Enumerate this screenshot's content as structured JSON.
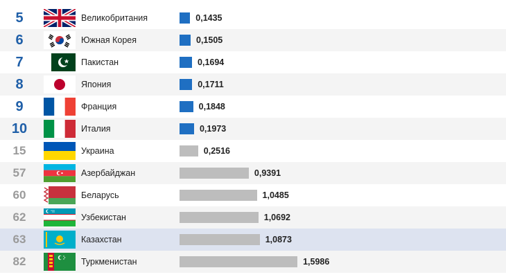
{
  "chart_data": {
    "type": "bar",
    "orientation": "horizontal",
    "rows": [
      {
        "rank": "5",
        "country": "Великобритания",
        "value": 0.1435,
        "label": "0,1435",
        "flag": "uk-flag",
        "top": true
      },
      {
        "rank": "6",
        "country": "Южная Корея",
        "value": 0.1505,
        "label": "0,1505",
        "flag": "south-korea-flag",
        "top": true
      },
      {
        "rank": "7",
        "country": "Пакистан",
        "value": 0.1694,
        "label": "0,1694",
        "flag": "pakistan-flag",
        "top": true
      },
      {
        "rank": "8",
        "country": "Япония",
        "value": 0.1711,
        "label": "0,1711",
        "flag": "japan-flag",
        "top": true
      },
      {
        "rank": "9",
        "country": "Франция",
        "value": 0.1848,
        "label": "0,1848",
        "flag": "france-flag",
        "top": true
      },
      {
        "rank": "10",
        "country": "Италия",
        "value": 0.1973,
        "label": "0,1973",
        "flag": "italy-flag",
        "top": true
      },
      {
        "rank": "15",
        "country": "Украина",
        "value": 0.2516,
        "label": "0,2516",
        "flag": "ukraine-flag",
        "top": false
      },
      {
        "rank": "57",
        "country": "Азербайджан",
        "value": 0.9391,
        "label": "0,9391",
        "flag": "azerbaijan-flag",
        "top": false
      },
      {
        "rank": "60",
        "country": "Беларусь",
        "value": 1.0485,
        "label": "1,0485",
        "flag": "belarus-flag",
        "top": false
      },
      {
        "rank": "62",
        "country": "Узбекистан",
        "value": 1.0692,
        "label": "1,0692",
        "flag": "uzbekistan-flag",
        "top": false
      },
      {
        "rank": "63",
        "country": "Казахстан",
        "value": 1.0873,
        "label": "1,0873",
        "flag": "kazakhstan-flag",
        "top": false,
        "highlight": true
      },
      {
        "rank": "82",
        "country": "Туркменистан",
        "value": 1.5986,
        "label": "1,5986",
        "flag": "turkmenistan-flag",
        "top": false
      }
    ],
    "colors": {
      "top_bar": "#1f6fc2",
      "other_bar": "#bdbdbd",
      "top_rank": "#1f5fa8",
      "other_rank": "#9a9a9a",
      "highlight_row": "#dde3f0"
    },
    "xlim": [
      0,
      1.6
    ],
    "grid": false,
    "legend": "none"
  }
}
